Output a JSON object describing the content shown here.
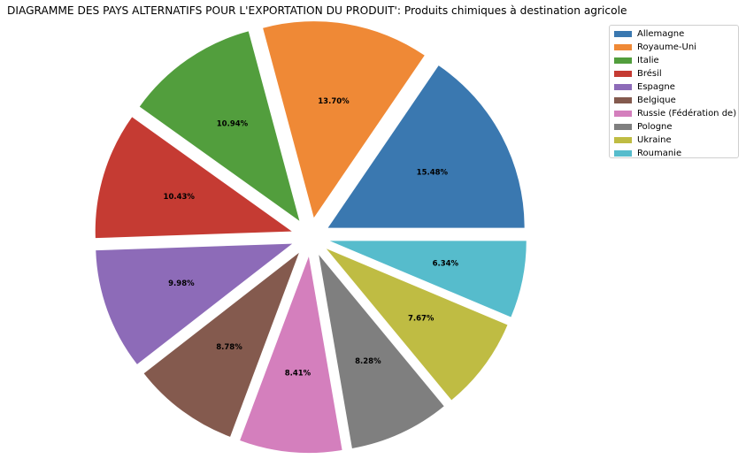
{
  "chart_data": {
    "type": "pie",
    "title": "DIAGRAMME DES PAYS ALTERNATIFS POUR L'EXPORTATION DU PRODUIT': Produits chimiques à destination agricole",
    "legend_position": "top-right",
    "slices": [
      {
        "label": "Allemagne",
        "value": 15.48,
        "display": "15.48%",
        "color": "#3a78b0"
      },
      {
        "label": "Royaume-Uni",
        "value": 13.7,
        "display": "13.70%",
        "color": "#ef8936"
      },
      {
        "label": "Italie",
        "value": 10.94,
        "display": "10.94%",
        "color": "#529e3d"
      },
      {
        "label": "Brésil",
        "value": 10.43,
        "display": "10.43%",
        "color": "#c53b33"
      },
      {
        "label": "Espagne",
        "value": 9.98,
        "display": "9.98%",
        "color": "#8d6bb8"
      },
      {
        "label": "Belgique",
        "value": 8.78,
        "display": "8.78%",
        "color": "#845a4e"
      },
      {
        "label": "Russie (Fédération de)",
        "value": 8.41,
        "display": "8.41%",
        "color": "#d47fbd"
      },
      {
        "label": "Pologne",
        "value": 8.28,
        "display": "8.28%",
        "color": "#7f7f7f"
      },
      {
        "label": "Ukraine",
        "value": 7.67,
        "display": "7.67%",
        "color": "#bfbc43"
      },
      {
        "label": "Roumanie",
        "value": 6.34,
        "display": "6.34%",
        "color": "#56bccc"
      }
    ]
  }
}
